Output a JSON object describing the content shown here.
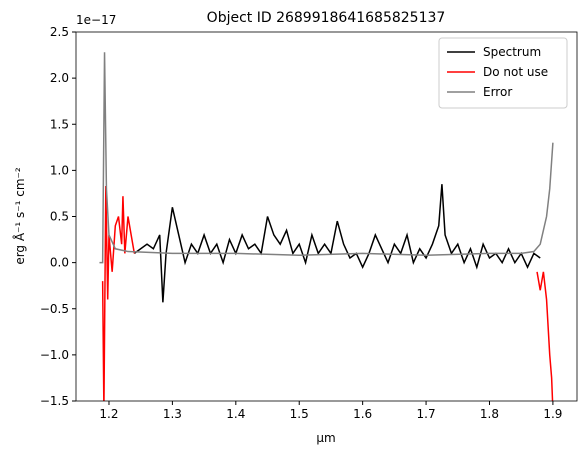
{
  "chart_data": {
    "type": "line",
    "title": "Object ID 2689918641685825137",
    "x_label": "µm",
    "y_label": "erg Å⁻¹ s⁻¹ cm⁻²",
    "y_offset_label": "1e−17",
    "xlim": [
      1.148,
      1.938
    ],
    "ylim": [
      -1.5,
      2.5
    ],
    "xticks": [
      1.2,
      1.3,
      1.4,
      1.5,
      1.6,
      1.7,
      1.8,
      1.9
    ],
    "yticks": [
      {
        "value": -1.5,
        "label": "−1.5"
      },
      {
        "value": -1.0,
        "label": "−1.0"
      },
      {
        "value": -0.5,
        "label": "−0.5"
      },
      {
        "value": 0,
        "label": "0.0"
      },
      0.5,
      {
        "value": 1.0,
        "label": "1.0"
      },
      1.5,
      {
        "value": 2.0,
        "label": "2.0"
      },
      2.5
    ],
    "legend": "upper right",
    "series": [
      {
        "name": "Spectrum",
        "color": "#000000",
        "x": [
          1.24,
          1.25,
          1.26,
          1.27,
          1.28,
          1.285,
          1.29,
          1.3,
          1.31,
          1.32,
          1.33,
          1.34,
          1.35,
          1.36,
          1.37,
          1.38,
          1.39,
          1.4,
          1.41,
          1.42,
          1.43,
          1.44,
          1.45,
          1.46,
          1.47,
          1.48,
          1.49,
          1.5,
          1.51,
          1.52,
          1.53,
          1.54,
          1.55,
          1.56,
          1.57,
          1.58,
          1.59,
          1.6,
          1.61,
          1.62,
          1.63,
          1.64,
          1.65,
          1.66,
          1.67,
          1.68,
          1.69,
          1.7,
          1.71,
          1.72,
          1.725,
          1.73,
          1.74,
          1.75,
          1.76,
          1.77,
          1.78,
          1.79,
          1.8,
          1.81,
          1.82,
          1.83,
          1.84,
          1.85,
          1.86,
          1.87,
          1.88
        ],
        "values": [
          0.1,
          0.15,
          0.2,
          0.15,
          0.3,
          -0.43,
          0.1,
          0.6,
          0.3,
          0.0,
          0.2,
          0.1,
          0.3,
          0.1,
          0.2,
          0.0,
          0.25,
          0.1,
          0.3,
          0.15,
          0.2,
          0.1,
          0.5,
          0.3,
          0.2,
          0.35,
          0.1,
          0.2,
          0.0,
          0.3,
          0.1,
          0.2,
          0.1,
          0.45,
          0.2,
          0.05,
          0.1,
          -0.05,
          0.1,
          0.3,
          0.15,
          0.0,
          0.2,
          0.1,
          0.3,
          0.0,
          0.15,
          0.05,
          0.2,
          0.4,
          0.85,
          0.3,
          0.1,
          0.2,
          0.0,
          0.15,
          -0.05,
          0.2,
          0.05,
          0.1,
          0.0,
          0.15,
          0.0,
          0.1,
          -0.05,
          0.1,
          0.05
        ]
      },
      {
        "name": "Do not use",
        "color": "#ff0000",
        "x": [
          1.19,
          1.192,
          1.195,
          1.198,
          1.2,
          1.205,
          1.21,
          1.215,
          1.22,
          1.222,
          1.225,
          1.23,
          1.235,
          1.24,
          1.56,
          1.875,
          1.88,
          1.885,
          1.89,
          1.895,
          1.898,
          1.9
        ],
        "values": [
          -0.2,
          -1.6,
          0.83,
          -0.4,
          0.3,
          -0.1,
          0.4,
          0.5,
          0.2,
          0.72,
          0.1,
          0.5,
          0.3,
          0.1,
          null,
          -0.1,
          -0.3,
          -0.1,
          -0.4,
          -1.0,
          -1.25,
          -1.6
        ]
      },
      {
        "name": "Error",
        "color": "#808080",
        "x": [
          1.185,
          1.19,
          1.193,
          1.196,
          1.2,
          1.21,
          1.23,
          1.3,
          1.4,
          1.5,
          1.6,
          1.7,
          1.8,
          1.85,
          1.87,
          1.88,
          1.89,
          1.895,
          1.9
        ],
        "values": [
          0.0,
          0.0,
          2.28,
          0.8,
          0.3,
          0.15,
          0.12,
          0.1,
          0.1,
          0.08,
          0.1,
          0.08,
          0.1,
          0.1,
          0.12,
          0.2,
          0.5,
          0.8,
          1.3
        ]
      }
    ]
  }
}
